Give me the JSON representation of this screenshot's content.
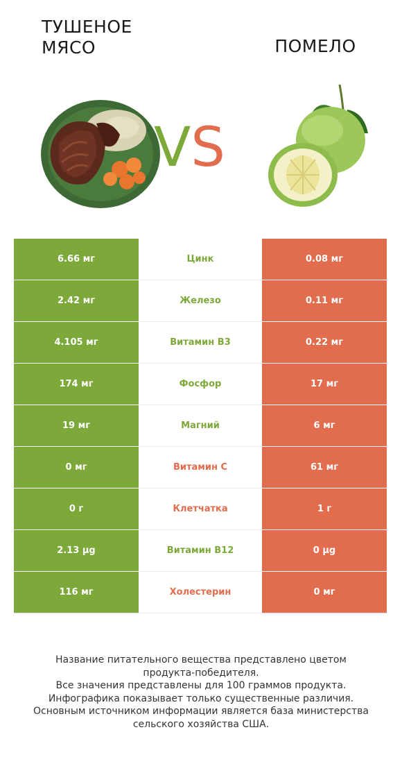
{
  "header": {
    "left_title": "ТУШЕНОЕ МЯСО",
    "right_title": "ПОМЕЛО",
    "vs_v": "V",
    "vs_s": "S"
  },
  "colors": {
    "winner_left": "#7da83a",
    "winner_right": "#e26d4e"
  },
  "rows": [
    {
      "left": "6.66 мг",
      "nutrient": "Цинк",
      "right": "0.08 мг",
      "winner": "left"
    },
    {
      "left": "2.42 мг",
      "nutrient": "Железо",
      "right": "0.11 мг",
      "winner": "left"
    },
    {
      "left": "4.105 мг",
      "nutrient": "Витамин B3",
      "right": "0.22 мг",
      "winner": "left"
    },
    {
      "left": "174 мг",
      "nutrient": "Фосфор",
      "right": "17 мг",
      "winner": "left"
    },
    {
      "left": "19 мг",
      "nutrient": "Магний",
      "right": "6 мг",
      "winner": "left"
    },
    {
      "left": "0 мг",
      "nutrient": "Витамин C",
      "right": "61 мг",
      "winner": "right"
    },
    {
      "left": "0 г",
      "nutrient": "Клетчатка",
      "right": "1 г",
      "winner": "right"
    },
    {
      "left": "2.13 µg",
      "nutrient": "Витамин B12",
      "right": "0 µg",
      "winner": "left"
    },
    {
      "left": "116 мг",
      "nutrient": "Холестерин",
      "right": "0 мг",
      "winner": "right"
    }
  ],
  "footer": {
    "line1": "Название питательного вещества представлено цветом",
    "line2": "продукта-победителя.",
    "line3": "Все значения представлены для 100 граммов продукта.",
    "line4": "Инфографика показывает только существенные различия.",
    "line5": "Основным источником информации является база министерства",
    "line6": "сельского хозяйства США."
  }
}
